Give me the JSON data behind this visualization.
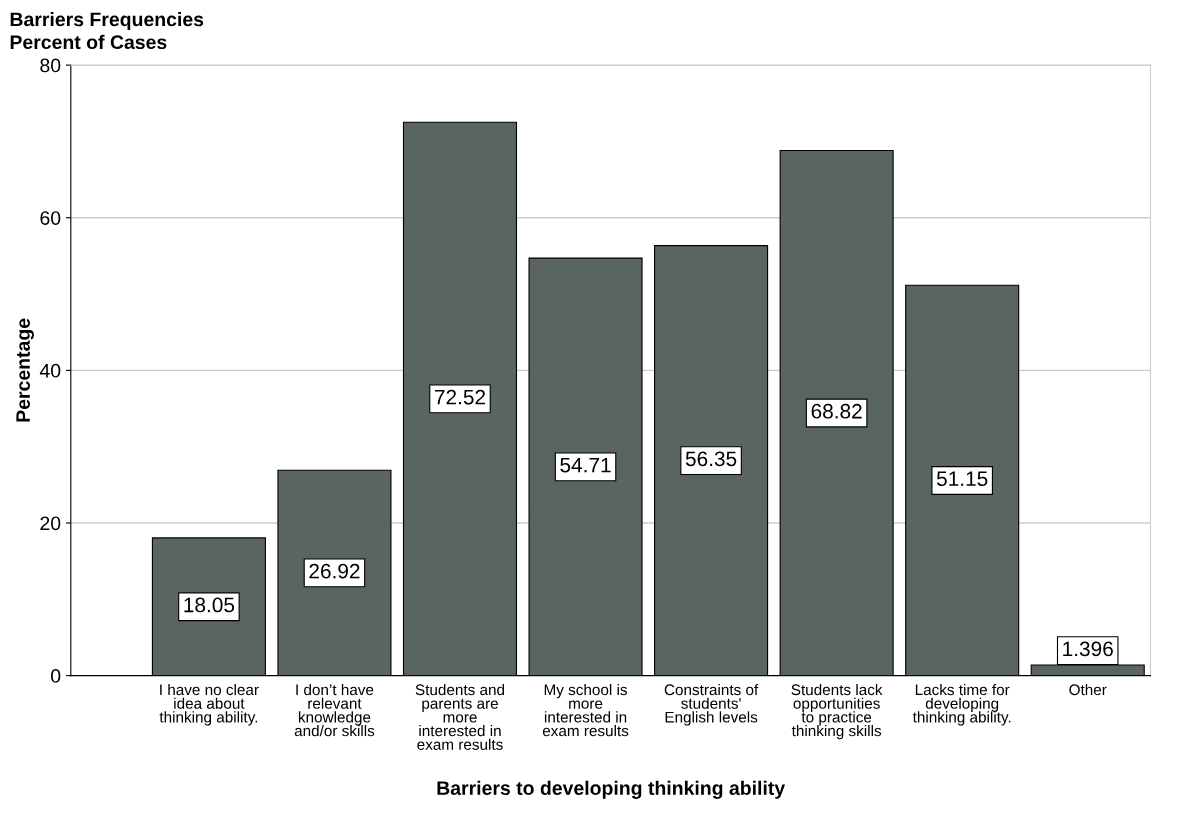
{
  "chart_data": {
    "type": "bar",
    "title": "Barriers Frequencies",
    "subtitle": "Percent of Cases",
    "xlabel": "Barriers to developing thinking ability",
    "ylabel": "Percentage",
    "categories": [
      "I have no clear\nidea about\nthinking ability.",
      "I don’t have\nrelevant\nknowledge\nand/or skills",
      "Students and\nparents are\nmore\ninterested in\nexam results",
      "My school is\nmore\ninterested in\nexam results",
      "Constraints of\nstudents'\nEnglish levels",
      "Students lack\nopportunities\nto practice\nthinking skills",
      "Lacks time for\ndeveloping\nthinking ability.",
      "Other"
    ],
    "values": [
      18.05,
      26.92,
      72.52,
      54.71,
      56.35,
      68.82,
      51.15,
      1.396
    ],
    "color": "#5a6560",
    "ylim": [
      0,
      80
    ],
    "yticks": [
      0,
      20,
      40,
      60,
      80
    ],
    "grid": "y",
    "data_labels": true
  }
}
